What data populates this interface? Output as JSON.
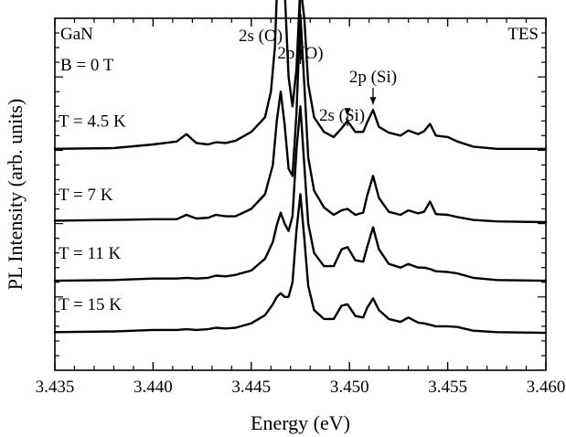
{
  "chart_data": {
    "type": "line",
    "xlabel": "Energy (eV)",
    "ylabel": "PL Intensity (arb. units)",
    "xlim": [
      3.435,
      3.46
    ],
    "x_ticks": [
      "3.435",
      "3.440",
      "3.445",
      "3.450",
      "3.455",
      "3.460"
    ],
    "y_ticks": "unlabeled",
    "ylim": [
      0,
      4.8
    ],
    "grid": false,
    "corner_labels": {
      "material": "GaN",
      "field": "B = 0 T",
      "mode": "TES"
    },
    "annotations": [
      {
        "text": "2s (O)",
        "x": 3.4465,
        "arrow": false
      },
      {
        "text": "2p (O)",
        "x": 3.4475,
        "arrow": true
      },
      {
        "text": "2s (Si)",
        "x": 3.4499,
        "arrow": true
      },
      {
        "text": "2p (Si)",
        "x": 3.4512,
        "arrow": true
      }
    ],
    "series": [
      {
        "name": "T = 4.5 K",
        "offset": 3.0,
        "points": [
          [
            3.435,
            0.02
          ],
          [
            3.438,
            0.03
          ],
          [
            3.44,
            0.08
          ],
          [
            3.4412,
            0.12
          ],
          [
            3.4417,
            0.22
          ],
          [
            3.4422,
            0.1
          ],
          [
            3.4428,
            0.08
          ],
          [
            3.4432,
            0.11
          ],
          [
            3.4437,
            0.1
          ],
          [
            3.4442,
            0.13
          ],
          [
            3.445,
            0.25
          ],
          [
            3.4457,
            0.45
          ],
          [
            3.446,
            0.8
          ],
          [
            3.4462,
            1.4
          ],
          [
            3.4463,
            2.1
          ],
          [
            3.4465,
            2.75
          ],
          [
            3.4467,
            2.2
          ],
          [
            3.4469,
            1.0
          ],
          [
            3.4471,
            0.6
          ],
          [
            3.4473,
            1.1
          ],
          [
            3.4475,
            2.25
          ],
          [
            3.4477,
            1.8
          ],
          [
            3.4479,
            0.9
          ],
          [
            3.4482,
            0.45
          ],
          [
            3.4487,
            0.25
          ],
          [
            3.4492,
            0.18
          ],
          [
            3.4496,
            0.3
          ],
          [
            3.4499,
            0.4
          ],
          [
            3.4503,
            0.25
          ],
          [
            3.4507,
            0.25
          ],
          [
            3.4509,
            0.38
          ],
          [
            3.4512,
            0.55
          ],
          [
            3.4515,
            0.32
          ],
          [
            3.452,
            0.24
          ],
          [
            3.4526,
            0.2
          ],
          [
            3.453,
            0.27
          ],
          [
            3.4535,
            0.22
          ],
          [
            3.4538,
            0.26
          ],
          [
            3.4541,
            0.36
          ],
          [
            3.4544,
            0.2
          ],
          [
            3.455,
            0.18
          ],
          [
            3.4555,
            0.12
          ],
          [
            3.4563,
            0.05
          ],
          [
            3.4575,
            0.02
          ],
          [
            3.46,
            0.02
          ]
        ]
      },
      {
        "name": "T = 7 K",
        "offset": 2.0,
        "points": [
          [
            3.435,
            0.04
          ],
          [
            3.438,
            0.05
          ],
          [
            3.44,
            0.06
          ],
          [
            3.4412,
            0.06
          ],
          [
            3.4417,
            0.12
          ],
          [
            3.4422,
            0.07
          ],
          [
            3.4428,
            0.08
          ],
          [
            3.4432,
            0.12
          ],
          [
            3.4437,
            0.1
          ],
          [
            3.4442,
            0.1
          ],
          [
            3.445,
            0.2
          ],
          [
            3.4457,
            0.4
          ],
          [
            3.4461,
            0.8
          ],
          [
            3.4463,
            1.4
          ],
          [
            3.4465,
            1.8
          ],
          [
            3.4467,
            1.35
          ],
          [
            3.4469,
            0.75
          ],
          [
            3.4471,
            0.65
          ],
          [
            3.4473,
            1.5
          ],
          [
            3.4475,
            2.85
          ],
          [
            3.4477,
            1.9
          ],
          [
            3.4479,
            0.9
          ],
          [
            3.4482,
            0.45
          ],
          [
            3.4487,
            0.22
          ],
          [
            3.4492,
            0.12
          ],
          [
            3.4496,
            0.18
          ],
          [
            3.4499,
            0.2
          ],
          [
            3.4503,
            0.12
          ],
          [
            3.4507,
            0.15
          ],
          [
            3.4509,
            0.38
          ],
          [
            3.4512,
            0.65
          ],
          [
            3.4515,
            0.35
          ],
          [
            3.452,
            0.16
          ],
          [
            3.4526,
            0.12
          ],
          [
            3.453,
            0.18
          ],
          [
            3.4535,
            0.14
          ],
          [
            3.4538,
            0.16
          ],
          [
            3.4541,
            0.3
          ],
          [
            3.4544,
            0.13
          ],
          [
            3.455,
            0.12
          ],
          [
            3.4555,
            0.09
          ],
          [
            3.4563,
            0.05
          ],
          [
            3.4575,
            0.03
          ],
          [
            3.46,
            0.02
          ]
        ]
      },
      {
        "name": "T = 11 K",
        "offset": 1.2,
        "points": [
          [
            3.435,
            0.02
          ],
          [
            3.438,
            0.03
          ],
          [
            3.44,
            0.05
          ],
          [
            3.4412,
            0.05
          ],
          [
            3.4417,
            0.06
          ],
          [
            3.4422,
            0.05
          ],
          [
            3.4428,
            0.06
          ],
          [
            3.4432,
            0.09
          ],
          [
            3.4437,
            0.08
          ],
          [
            3.4442,
            0.1
          ],
          [
            3.445,
            0.16
          ],
          [
            3.4457,
            0.32
          ],
          [
            3.4461,
            0.55
          ],
          [
            3.4463,
            0.78
          ],
          [
            3.4465,
            0.95
          ],
          [
            3.4467,
            0.8
          ],
          [
            3.4469,
            0.7
          ],
          [
            3.4471,
            0.9
          ],
          [
            3.4473,
            1.8
          ],
          [
            3.4475,
            2.4
          ],
          [
            3.4477,
            1.6
          ],
          [
            3.4479,
            0.8
          ],
          [
            3.4482,
            0.4
          ],
          [
            3.4487,
            0.22
          ],
          [
            3.4492,
            0.22
          ],
          [
            3.4496,
            0.45
          ],
          [
            3.4499,
            0.48
          ],
          [
            3.4503,
            0.3
          ],
          [
            3.4507,
            0.28
          ],
          [
            3.4509,
            0.48
          ],
          [
            3.4512,
            0.75
          ],
          [
            3.4515,
            0.45
          ],
          [
            3.452,
            0.25
          ],
          [
            3.4526,
            0.2
          ],
          [
            3.453,
            0.25
          ],
          [
            3.4535,
            0.2
          ],
          [
            3.4538,
            0.2
          ],
          [
            3.4541,
            0.18
          ],
          [
            3.4544,
            0.15
          ],
          [
            3.455,
            0.14
          ],
          [
            3.4555,
            0.12
          ],
          [
            3.4563,
            0.06
          ],
          [
            3.4575,
            0.03
          ],
          [
            3.46,
            0.02
          ]
        ]
      },
      {
        "name": "T = 15 K",
        "offset": 0.5,
        "points": [
          [
            3.435,
            0.02
          ],
          [
            3.438,
            0.03
          ],
          [
            3.44,
            0.05
          ],
          [
            3.4412,
            0.05
          ],
          [
            3.4417,
            0.06
          ],
          [
            3.4422,
            0.05
          ],
          [
            3.4428,
            0.06
          ],
          [
            3.4432,
            0.08
          ],
          [
            3.4437,
            0.07
          ],
          [
            3.4442,
            0.08
          ],
          [
            3.445,
            0.14
          ],
          [
            3.4457,
            0.25
          ],
          [
            3.4461,
            0.4
          ],
          [
            3.4463,
            0.5
          ],
          [
            3.4465,
            0.55
          ],
          [
            3.4467,
            0.5
          ],
          [
            3.4469,
            0.5
          ],
          [
            3.4471,
            0.7
          ],
          [
            3.4473,
            1.4
          ],
          [
            3.4475,
            1.9
          ],
          [
            3.4477,
            1.3
          ],
          [
            3.4479,
            0.65
          ],
          [
            3.4482,
            0.32
          ],
          [
            3.4487,
            0.2
          ],
          [
            3.4492,
            0.2
          ],
          [
            3.4496,
            0.38
          ],
          [
            3.4499,
            0.4
          ],
          [
            3.4503,
            0.24
          ],
          [
            3.4507,
            0.22
          ],
          [
            3.4509,
            0.35
          ],
          [
            3.4512,
            0.48
          ],
          [
            3.4515,
            0.32
          ],
          [
            3.452,
            0.2
          ],
          [
            3.4526,
            0.16
          ],
          [
            3.453,
            0.22
          ],
          [
            3.4535,
            0.15
          ],
          [
            3.4538,
            0.14
          ],
          [
            3.4541,
            0.12
          ],
          [
            3.4544,
            0.1
          ],
          [
            3.455,
            0.1
          ],
          [
            3.4555,
            0.09
          ],
          [
            3.4563,
            0.04
          ],
          [
            3.4575,
            0.02
          ],
          [
            3.46,
            0.01
          ]
        ]
      }
    ]
  }
}
